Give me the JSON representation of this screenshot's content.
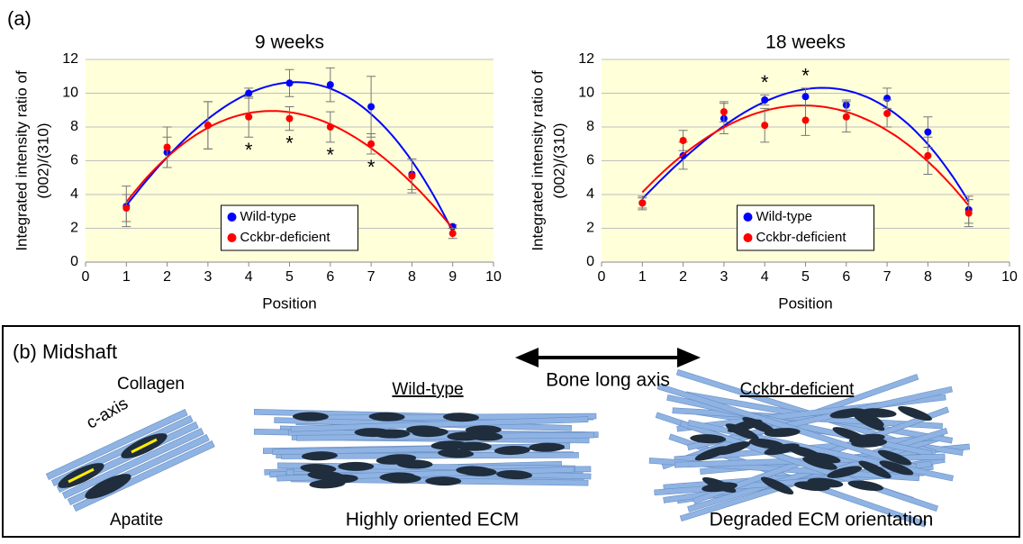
{
  "panel_labels": {
    "a": "(a)",
    "b": "(b) Midshaft"
  },
  "chart_data": [
    {
      "type": "scatter",
      "title": "9 weeks",
      "xlabel": "Position",
      "ylabel": [
        "Integrated intensity ratio of",
        "(002)/(310)"
      ],
      "x": [
        1,
        2,
        3,
        4,
        5,
        6,
        7,
        8,
        9
      ],
      "series": [
        {
          "name": "Wild-type",
          "color": "#0000ff",
          "values": [
            3.3,
            6.5,
            8.1,
            10.0,
            10.6,
            10.5,
            9.2,
            5.2,
            2.1
          ],
          "errors": [
            1.2,
            0.9,
            1.4,
            0.3,
            0.8,
            1.0,
            1.8,
            0.9,
            0.1
          ]
        },
        {
          "name": "Cckbr-deficient",
          "color": "#ff0000",
          "values": [
            3.2,
            6.8,
            8.1,
            8.6,
            8.5,
            8.0,
            7.0,
            5.1,
            1.7
          ],
          "errors": [
            0.8,
            1.2,
            1.4,
            1.2,
            0.7,
            0.9,
            0.6,
            1.0,
            0.3
          ]
        }
      ],
      "trendline_order": 3,
      "annotations": [
        {
          "text": "*",
          "x": 4,
          "series": 1,
          "side": "below"
        },
        {
          "text": "*",
          "x": 5,
          "series": 1,
          "side": "below"
        },
        {
          "text": "*",
          "x": 6,
          "series": 1,
          "side": "below"
        },
        {
          "text": "*",
          "x": 7,
          "series": 1,
          "side": "below"
        }
      ],
      "xlim": [
        0,
        10
      ],
      "xticks": [
        0,
        1,
        2,
        3,
        4,
        5,
        6,
        7,
        8,
        9,
        10
      ],
      "ylim": [
        0,
        12
      ],
      "yticks": [
        0,
        2,
        4,
        6,
        8,
        10,
        12
      ],
      "grid": true,
      "legend": "lower center"
    },
    {
      "type": "scatter",
      "title": "18 weeks",
      "xlabel": "Position",
      "ylabel": [
        "Integrated intensity ratio of",
        "(002)/(310)"
      ],
      "x": [
        1,
        2,
        3,
        4,
        5,
        6,
        7,
        8,
        9
      ],
      "series": [
        {
          "name": "Wild-type",
          "color": "#0000ff",
          "values": [
            3.5,
            6.3,
            8.5,
            9.6,
            9.8,
            9.3,
            9.7,
            7.7,
            3.1
          ],
          "errors": [
            0.4,
            0.8,
            0.9,
            0.3,
            0.5,
            0.3,
            0.6,
            0.9,
            0.8
          ]
        },
        {
          "name": "Cckbr-deficient",
          "color": "#ff0000",
          "values": [
            3.5,
            7.2,
            8.9,
            8.1,
            8.4,
            8.6,
            8.8,
            6.3,
            2.9
          ],
          "errors": [
            0.3,
            0.6,
            0.6,
            1.0,
            0.9,
            0.9,
            0.8,
            1.1,
            0.8
          ]
        }
      ],
      "trendline_order": 3,
      "annotations": [
        {
          "text": "*",
          "x": 4,
          "series": 0,
          "side": "above"
        },
        {
          "text": "*",
          "x": 5,
          "series": 0,
          "side": "above"
        }
      ],
      "xlim": [
        0,
        10
      ],
      "xticks": [
        0,
        1,
        2,
        3,
        4,
        5,
        6,
        7,
        8,
        9,
        10
      ],
      "ylim": [
        0,
        12
      ],
      "yticks": [
        0,
        2,
        4,
        6,
        8,
        10,
        12
      ],
      "grid": true,
      "legend": "lower center"
    }
  ],
  "diagram": {
    "collagen": "Collagen",
    "c_axis": "c-axis",
    "apatite": "Apatite",
    "wild_type": "Wild-type",
    "bone_axis": "Bone long axis",
    "cckbr": "Cckbr-deficient",
    "caption_wt": "Highly oriented ECM",
    "caption_ko": "Degraded ECM orientation"
  }
}
